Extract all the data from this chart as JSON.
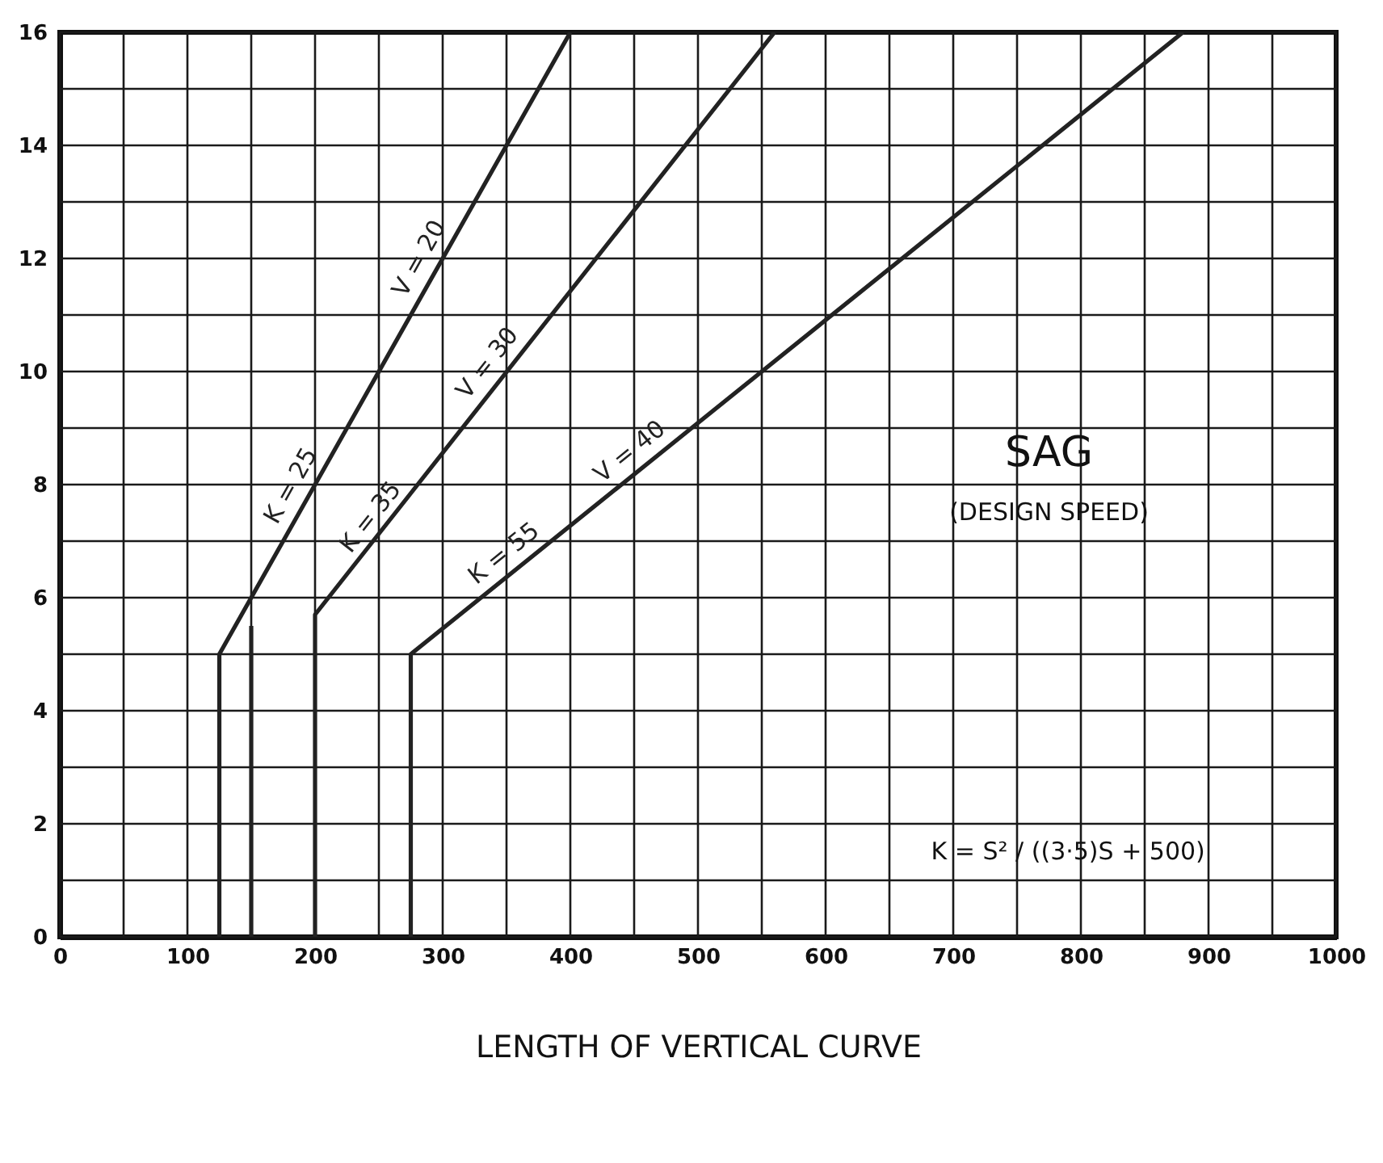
{
  "chart_data": {
    "type": "line",
    "xlabel": "LENGTH OF VERTICAL CURVE",
    "xlim": [
      0,
      1000
    ],
    "xticks": [
      0,
      {
        "value": 50,
        "label": null
      },
      100,
      {
        "value": 150,
        "label": null
      },
      200,
      {
        "value": 250,
        "label": null
      },
      300,
      {
        "value": 350,
        "label": null
      },
      400,
      {
        "value": 450,
        "label": null
      },
      500,
      {
        "value": 550,
        "label": null
      },
      600,
      {
        "value": 650,
        "label": null
      },
      700,
      {
        "value": 750,
        "label": null
      },
      800,
      {
        "value": 850,
        "label": null
      },
      900,
      {
        "value": 950,
        "label": null
      },
      1000
    ],
    "ylim": [
      0,
      16
    ],
    "yticks": [
      0,
      {
        "value": 1,
        "label": null
      },
      2,
      {
        "value": 3,
        "label": null
      },
      4,
      {
        "value": 5,
        "label": null
      },
      6,
      {
        "value": 7,
        "label": null
      },
      8,
      {
        "value": 9,
        "label": null
      },
      10,
      {
        "value": 11,
        "label": null
      },
      12,
      {
        "value": 13,
        "label": null
      },
      14,
      {
        "value": 15,
        "label": null
      },
      16
    ],
    "grid": true,
    "legend": false,
    "line_style": "solid",
    "marker": "none",
    "series": [
      {
        "name": "V = 20",
        "color": "#222222",
        "x": [
          125,
          125,
          400
        ],
        "values": [
          0,
          5,
          16
        ]
      },
      {
        "color": "#222222",
        "x": [
          150,
          150
        ],
        "values": [
          0,
          5.5
        ]
      },
      {
        "name": "V = 30",
        "color": "#222222",
        "x": [
          200,
          200,
          560
        ],
        "values": [
          0,
          5.7,
          16
        ]
      },
      {
        "name": "V = 40",
        "color": "#222222",
        "x": [
          275,
          275,
          880
        ],
        "values": [
          0,
          5,
          16
        ]
      }
    ],
    "annotations": [
      {
        "text": "K = 25",
        "x": 195,
        "y": 7.8
      },
      {
        "text": "K = 35",
        "x": 256,
        "y": 7.2
      },
      {
        "text": "K = 55",
        "x": 358,
        "y": 6.5
      },
      "SAG",
      "(DESIGN  SPEED)",
      "K = S² / ((3·5)S + 500)"
    ]
  }
}
